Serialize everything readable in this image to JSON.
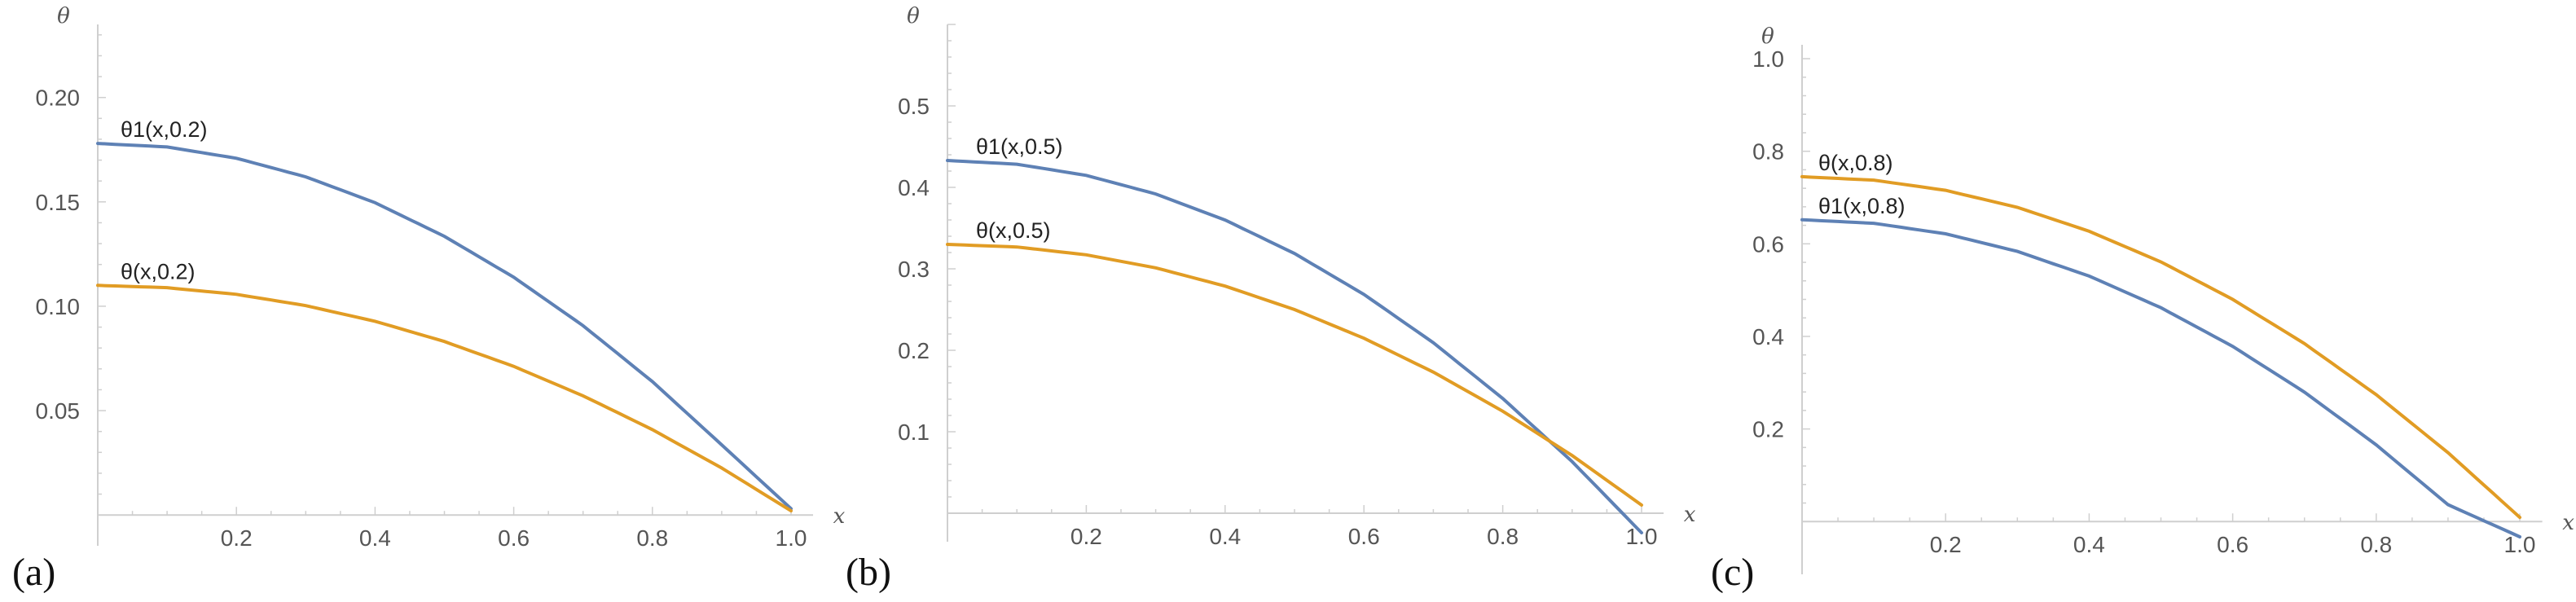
{
  "chart_data": [
    {
      "type": "line",
      "panel_label": "(a)",
      "xlabel": "x",
      "ylabel": "θ",
      "xlim": [
        0,
        1.02
      ],
      "ylim": [
        -0.005,
        0.235
      ],
      "x_ticks": [
        0.2,
        0.4,
        0.6,
        0.8,
        1.0
      ],
      "x_tick_labels": [
        "0.2",
        "0.4",
        "0.6",
        "0.8",
        "1.0"
      ],
      "y_ticks": [
        0.05,
        0.1,
        0.15,
        0.2
      ],
      "y_tick_labels": [
        "0.05",
        "0.10",
        "0.15",
        "0.20"
      ],
      "grid": false,
      "series": [
        {
          "name": "θ1(x,0.2)",
          "color": "#5E81B5",
          "x": [
            0,
            0.1,
            0.2,
            0.3,
            0.4,
            0.5,
            0.6,
            0.7,
            0.8,
            0.9,
            1.0
          ],
          "y": [
            0.178,
            0.1763,
            0.1709,
            0.162,
            0.1496,
            0.1335,
            0.1139,
            0.0907,
            0.0639,
            0.0336,
            0.003
          ]
        },
        {
          "name": "θ(x,0.2)",
          "color": "#E19C24",
          "x": [
            0,
            0.1,
            0.2,
            0.3,
            0.4,
            0.5,
            0.6,
            0.7,
            0.8,
            0.9,
            1.0
          ],
          "y": [
            0.11,
            0.1089,
            0.1057,
            0.1003,
            0.0928,
            0.0831,
            0.0712,
            0.0571,
            0.0409,
            0.0225,
            0.002
          ]
        }
      ]
    },
    {
      "type": "line",
      "panel_label": "(b)",
      "xlabel": "x",
      "ylabel": "θ",
      "xlim": [
        0,
        1.02
      ],
      "ylim": [
        -0.01,
        0.6
      ],
      "x_ticks": [
        0.2,
        0.4,
        0.6,
        0.8,
        1.0
      ],
      "x_tick_labels": [
        "0.2",
        "0.4",
        "0.6",
        "0.8",
        "1.0"
      ],
      "y_ticks": [
        0.1,
        0.2,
        0.3,
        0.4,
        0.5
      ],
      "y_tick_labels": [
        "0.1",
        "0.2",
        "0.3",
        "0.4",
        "0.5"
      ],
      "grid": false,
      "series": [
        {
          "name": "θ1(x,0.5)",
          "color": "#5E81B5",
          "x": [
            0,
            0.1,
            0.2,
            0.3,
            0.4,
            0.5,
            0.6,
            0.7,
            0.8,
            0.9,
            1.0
          ],
          "y": [
            0.433,
            0.4284,
            0.4147,
            0.3919,
            0.3599,
            0.3188,
            0.2686,
            0.2093,
            0.1408,
            0.0633,
            -0.024
          ]
        },
        {
          "name": "θ(x,0.5)",
          "color": "#E19C24",
          "x": [
            0,
            0.1,
            0.2,
            0.3,
            0.4,
            0.5,
            0.6,
            0.7,
            0.8,
            0.9,
            1.0
          ],
          "y": [
            0.33,
            0.3268,
            0.3172,
            0.3012,
            0.2788,
            0.25,
            0.2148,
            0.1732,
            0.1252,
            0.0708,
            0.01
          ]
        }
      ]
    },
    {
      "type": "line",
      "panel_label": "(c)",
      "xlabel": "x",
      "ylabel": "θ",
      "xlim": [
        0,
        1.02
      ],
      "ylim": [
        -0.07,
        1.03
      ],
      "x_ticks": [
        0.2,
        0.4,
        0.6,
        0.8,
        1.0
      ],
      "x_tick_labels": [
        "0.2",
        "0.4",
        "0.6",
        "0.8",
        "1.0"
      ],
      "y_ticks": [
        0.2,
        0.4,
        0.6,
        0.8,
        1.0
      ],
      "y_tick_labels": [
        "0.2",
        "0.4",
        "0.6",
        "0.8",
        "1.0"
      ],
      "grid": false,
      "series": [
        {
          "name": "θ(x,0.8)",
          "color": "#E19C24",
          "x": [
            0,
            0.1,
            0.2,
            0.3,
            0.4,
            0.5,
            0.6,
            0.7,
            0.8,
            0.9,
            1.0
          ],
          "y": [
            0.745,
            0.7376,
            0.7156,
            0.6788,
            0.6272,
            0.561,
            0.48,
            0.3844,
            0.274,
            0.1488,
            0.009
          ]
        },
        {
          "name": "θ1(x,0.8)",
          "color": "#5E81B5",
          "x": [
            0,
            0.1,
            0.2,
            0.3,
            0.4,
            0.5,
            0.6,
            0.7,
            0.8,
            0.9,
            1.0
          ],
          "y": [
            0.652,
            0.6444,
            0.6216,
            0.5836,
            0.5304,
            0.462,
            0.3784,
            0.2796,
            0.1656,
            0.0364,
            -0.033
          ]
        }
      ]
    }
  ]
}
